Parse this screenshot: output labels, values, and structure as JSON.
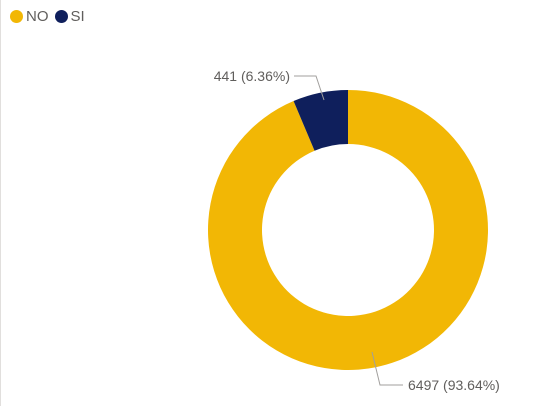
{
  "chart_data": {
    "type": "pie",
    "variant": "donut",
    "title": "",
    "legend": {
      "placement": "top-left",
      "entries": [
        {
          "label": "NO",
          "color": "#F2B705"
        },
        {
          "label": "SI",
          "color": "#0F1F5C"
        }
      ]
    },
    "slices": [
      {
        "label": "NO",
        "value": 6497,
        "percent": 93.64,
        "display": "6497 (93.64%)",
        "color": "#F2B705"
      },
      {
        "label": "SI",
        "value": 441,
        "percent": 6.36,
        "display": "441 (6.36%)",
        "color": "#0F1F5C"
      }
    ]
  }
}
